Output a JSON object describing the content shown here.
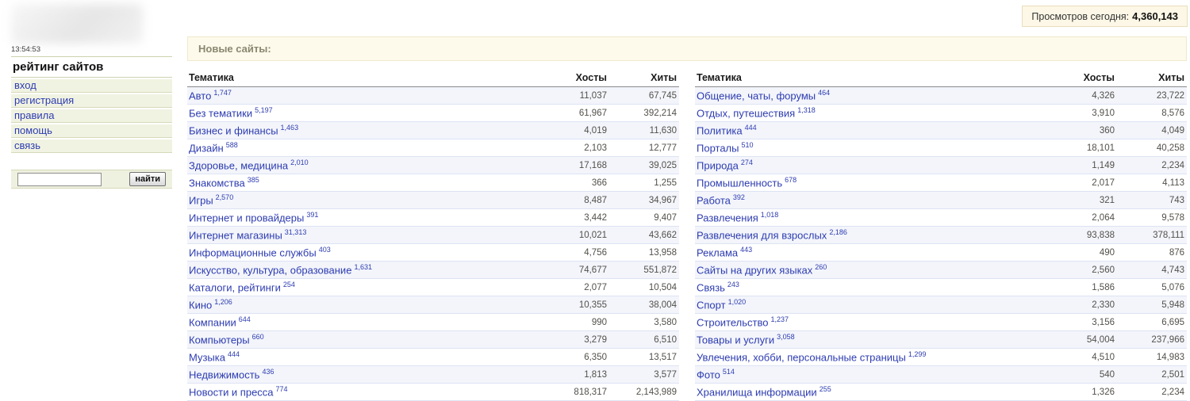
{
  "page": {
    "clock": "13:54:53",
    "views": {
      "label": "Просмотров сегодня:",
      "value": "4,360,143"
    },
    "banner": "Новые сайты:"
  },
  "sidebar": {
    "title": "рейтинг сайтов",
    "items": [
      {
        "label": "вход"
      },
      {
        "label": "регистрация"
      },
      {
        "label": "правила"
      },
      {
        "label": "помощь"
      },
      {
        "label": "связь"
      }
    ],
    "search": {
      "value": "",
      "button": "найти"
    }
  },
  "tables": {
    "headers": {
      "topic": "Тематика",
      "hosts": "Хосты",
      "hits": "Хиты"
    },
    "left": [
      {
        "name": "Авто",
        "count": "1,747",
        "hosts": "11,037",
        "hits": "67,745"
      },
      {
        "name": "Без тематики",
        "count": "5,197",
        "hosts": "61,967",
        "hits": "392,214"
      },
      {
        "name": "Бизнес и финансы",
        "count": "1,463",
        "hosts": "4,019",
        "hits": "11,630"
      },
      {
        "name": "Дизайн",
        "count": "588",
        "hosts": "2,103",
        "hits": "12,777"
      },
      {
        "name": "Здоровье, медицина",
        "count": "2,010",
        "hosts": "17,168",
        "hits": "39,025"
      },
      {
        "name": "Знакомства",
        "count": "385",
        "hosts": "366",
        "hits": "1,255"
      },
      {
        "name": "Игры",
        "count": "2,570",
        "hosts": "8,487",
        "hits": "34,967"
      },
      {
        "name": "Интернет и провайдеры",
        "count": "391",
        "hosts": "3,442",
        "hits": "9,407"
      },
      {
        "name": "Интернет магазины",
        "count": "31,313",
        "hosts": "10,021",
        "hits": "43,662"
      },
      {
        "name": "Информационные службы",
        "count": "403",
        "hosts": "4,756",
        "hits": "13,958"
      },
      {
        "name": "Искусство, культура, образование",
        "count": "1,631",
        "hosts": "74,677",
        "hits": "551,872"
      },
      {
        "name": "Каталоги, рейтинги",
        "count": "254",
        "hosts": "2,077",
        "hits": "10,504"
      },
      {
        "name": "Кино",
        "count": "1,206",
        "hosts": "10,355",
        "hits": "38,004"
      },
      {
        "name": "Компании",
        "count": "644",
        "hosts": "990",
        "hits": "3,580"
      },
      {
        "name": "Компьютеры",
        "count": "660",
        "hosts": "3,279",
        "hits": "6,510"
      },
      {
        "name": "Музыка",
        "count": "444",
        "hosts": "6,350",
        "hits": "13,517"
      },
      {
        "name": "Недвижимость",
        "count": "436",
        "hosts": "1,813",
        "hits": "3,577"
      },
      {
        "name": "Новости и пресса",
        "count": "774",
        "hosts": "818,317",
        "hits": "2,143,989"
      }
    ],
    "right": [
      {
        "name": "Общение, чаты, форумы",
        "count": "464",
        "hosts": "4,326",
        "hits": "23,722"
      },
      {
        "name": "Отдых, путешествия",
        "count": "1,318",
        "hosts": "3,910",
        "hits": "8,576"
      },
      {
        "name": "Политика",
        "count": "444",
        "hosts": "360",
        "hits": "4,049"
      },
      {
        "name": "Порталы",
        "count": "510",
        "hosts": "18,101",
        "hits": "40,258"
      },
      {
        "name": "Природа",
        "count": "274",
        "hosts": "1,149",
        "hits": "2,234"
      },
      {
        "name": "Промышленность",
        "count": "678",
        "hosts": "2,017",
        "hits": "4,113"
      },
      {
        "name": "Работа",
        "count": "392",
        "hosts": "321",
        "hits": "743"
      },
      {
        "name": "Развлечения",
        "count": "1,018",
        "hosts": "2,064",
        "hits": "9,578"
      },
      {
        "name": "Развлечения для взрослых",
        "count": "2,186",
        "hosts": "93,838",
        "hits": "378,111"
      },
      {
        "name": "Реклама",
        "count": "443",
        "hosts": "490",
        "hits": "876"
      },
      {
        "name": "Сайты на других языках",
        "count": "260",
        "hosts": "2,560",
        "hits": "4,743"
      },
      {
        "name": "Связь",
        "count": "243",
        "hosts": "1,586",
        "hits": "5,076"
      },
      {
        "name": "Спорт",
        "count": "1,020",
        "hosts": "2,330",
        "hits": "5,948"
      },
      {
        "name": "Строительство",
        "count": "1,237",
        "hosts": "3,156",
        "hits": "6,695"
      },
      {
        "name": "Товары и услуги",
        "count": "3,058",
        "hosts": "54,004",
        "hits": "237,966"
      },
      {
        "name": "Увлечения, хобби, персональные страницы",
        "count": "1,299",
        "hosts": "4,510",
        "hits": "14,983"
      },
      {
        "name": "Фото",
        "count": "514",
        "hosts": "540",
        "hits": "2,501"
      },
      {
        "name": "Хранилища информации",
        "count": "255",
        "hosts": "1,326",
        "hits": "2,234"
      }
    ]
  },
  "colors": {
    "link": "#2d3cb0",
    "row_stripe": "#f3f5fb",
    "row_border": "#dde3f3",
    "number_text": "#52504a",
    "banner_bg": "#fdfaeb",
    "banner_border": "#efe9cd",
    "banner_text": "#8a8770",
    "views_bg": "#fcf7e6",
    "views_border": "#e8dfbc",
    "sidebar_item_bg": "#f1f3e2",
    "sidebar_line": "#d6dab9"
  }
}
